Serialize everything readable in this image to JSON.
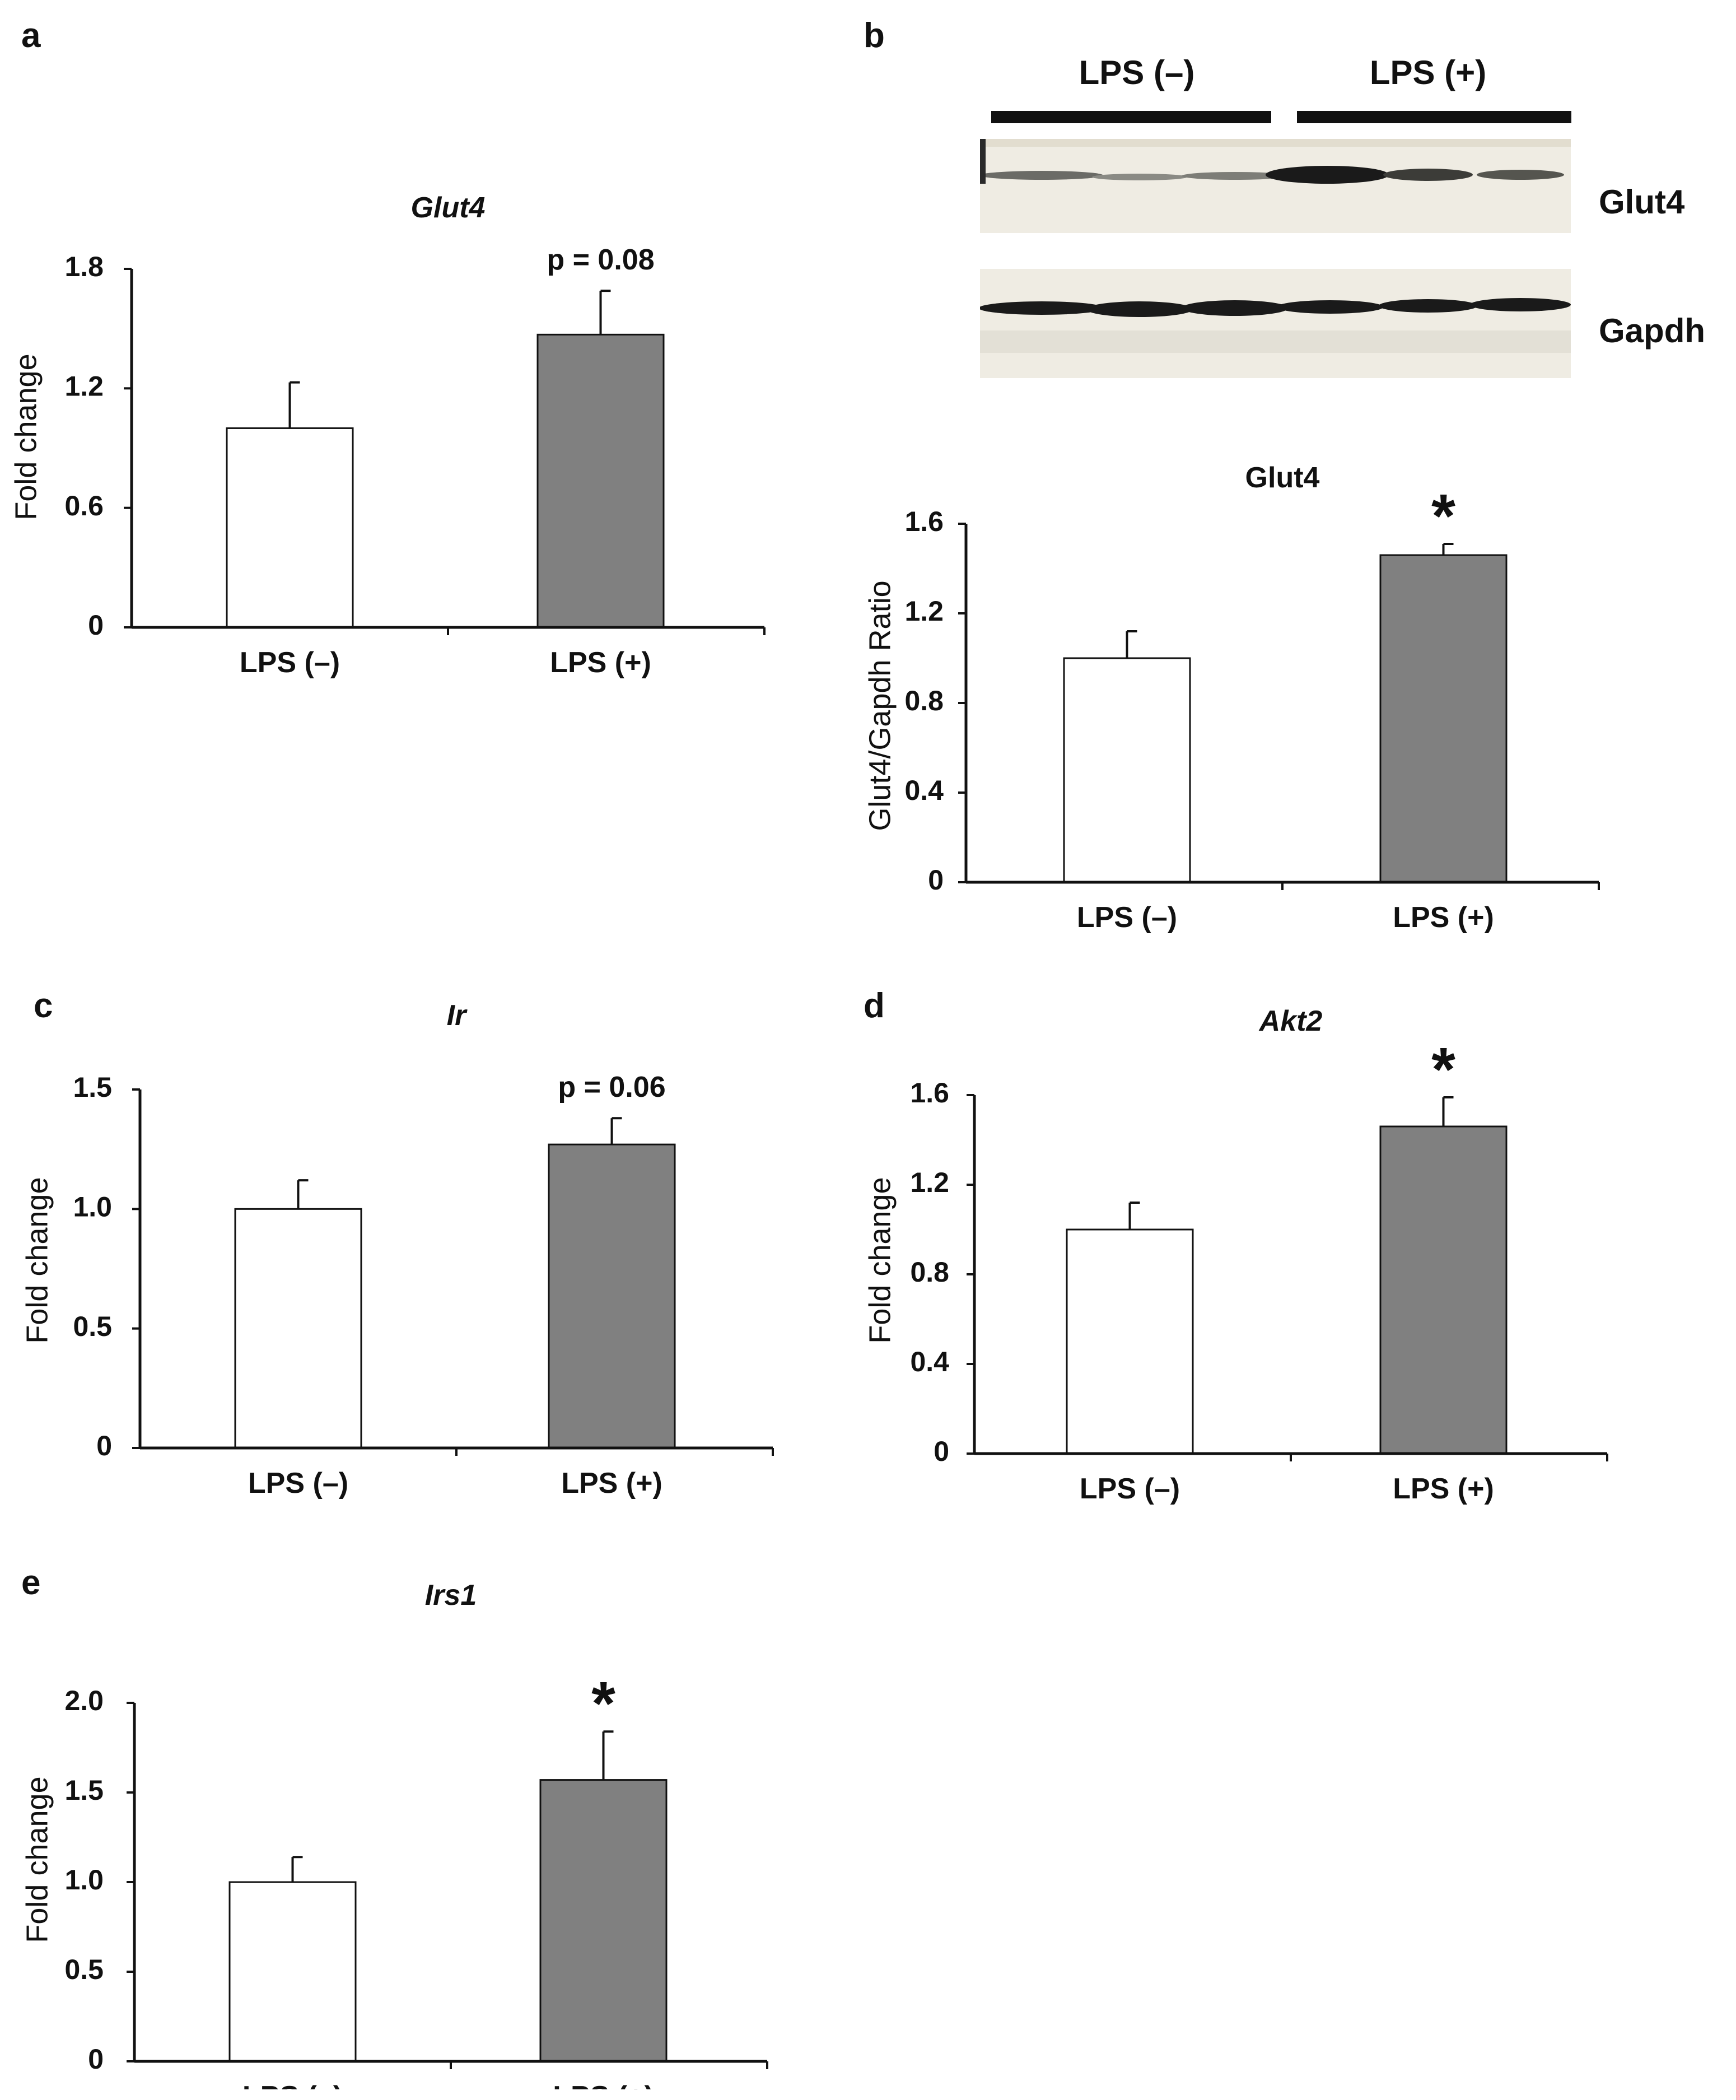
{
  "panels": {
    "a": {
      "letter": "a"
    },
    "b": {
      "letter": "b"
    },
    "c": {
      "letter": "c"
    },
    "d": {
      "letter": "d"
    },
    "e": {
      "letter": "e"
    }
  },
  "blot": {
    "group_labels": [
      "LPS (–)",
      "LPS (+)"
    ],
    "band_labels": [
      "Glut4",
      "Gapdh"
    ],
    "colors": {
      "membrane": "#efece3",
      "band_dark": "#1a1a1a"
    }
  },
  "colors": {
    "control_bar": "#ffffff",
    "treated_bar": "#808080",
    "axis": "#111111"
  },
  "chart_data": [
    {
      "panel": "a",
      "type": "bar",
      "title": "Glut4",
      "title_italic": true,
      "categories": [
        "LPS (–)",
        "LPS (+)"
      ],
      "values": [
        1.0,
        1.47
      ],
      "errors": [
        0.23,
        0.22
      ],
      "ylabel": "Fold change",
      "ylim": [
        0,
        1.8
      ],
      "yticks": [
        0,
        0.6,
        1.2,
        1.8
      ],
      "ytick_labels": [
        "0",
        "0.6",
        "1.2",
        "1.8"
      ],
      "annotations": [
        {
          "bar": 1,
          "text": "p = 0.08",
          "kind": "pvalue"
        }
      ]
    },
    {
      "panel": "b",
      "type": "bar",
      "title": "Glut4",
      "title_italic": false,
      "categories": [
        "LPS (–)",
        "LPS (+)"
      ],
      "values": [
        1.0,
        1.46
      ],
      "errors": [
        0.12,
        0.05
      ],
      "ylabel": "Glut4/Gapdh Ratio",
      "ylim": [
        0,
        1.6
      ],
      "yticks": [
        0,
        0.4,
        0.8,
        1.2,
        1.6
      ],
      "ytick_labels": [
        "0",
        "0.4",
        "0.8",
        "1.2",
        "1.6"
      ],
      "annotations": [
        {
          "bar": 1,
          "text": "*",
          "kind": "star"
        }
      ]
    },
    {
      "panel": "c",
      "type": "bar",
      "title": "Ir",
      "title_italic": true,
      "categories": [
        "LPS (–)",
        "LPS (+)"
      ],
      "values": [
        1.0,
        1.27
      ],
      "errors": [
        0.12,
        0.11
      ],
      "ylabel": "Fold change",
      "ylim": [
        0,
        1.5
      ],
      "yticks": [
        0,
        0.5,
        1.0,
        1.5
      ],
      "ytick_labels": [
        "0",
        "0.5",
        "1.0",
        "1.5"
      ],
      "annotations": [
        {
          "bar": 1,
          "text": "p = 0.06",
          "kind": "pvalue"
        }
      ]
    },
    {
      "panel": "d",
      "type": "bar",
      "title": "Akt2",
      "title_italic": true,
      "categories": [
        "LPS (–)",
        "LPS (+)"
      ],
      "values": [
        1.0,
        1.46
      ],
      "errors": [
        0.12,
        0.13
      ],
      "ylabel": "Fold change",
      "ylim": [
        0,
        1.6
      ],
      "yticks": [
        0,
        0.4,
        0.8,
        1.2,
        1.6
      ],
      "ytick_labels": [
        "0",
        "0.4",
        "0.8",
        "1.2",
        "1.6"
      ],
      "annotations": [
        {
          "bar": 1,
          "text": "*",
          "kind": "star"
        }
      ]
    },
    {
      "panel": "e",
      "type": "bar",
      "title": "Irs1",
      "title_italic": true,
      "categories": [
        "LPS (–)",
        "LPS (+)"
      ],
      "values": [
        1.0,
        1.57
      ],
      "errors": [
        0.14,
        0.27
      ],
      "ylabel": "Fold change",
      "ylim": [
        0,
        2.0
      ],
      "yticks": [
        0,
        0.5,
        1.0,
        1.5,
        2.0
      ],
      "ytick_labels": [
        "0",
        "0.5",
        "1.0",
        "1.5",
        "2.0"
      ],
      "annotations": [
        {
          "bar": 1,
          "text": "*",
          "kind": "star"
        }
      ]
    }
  ]
}
